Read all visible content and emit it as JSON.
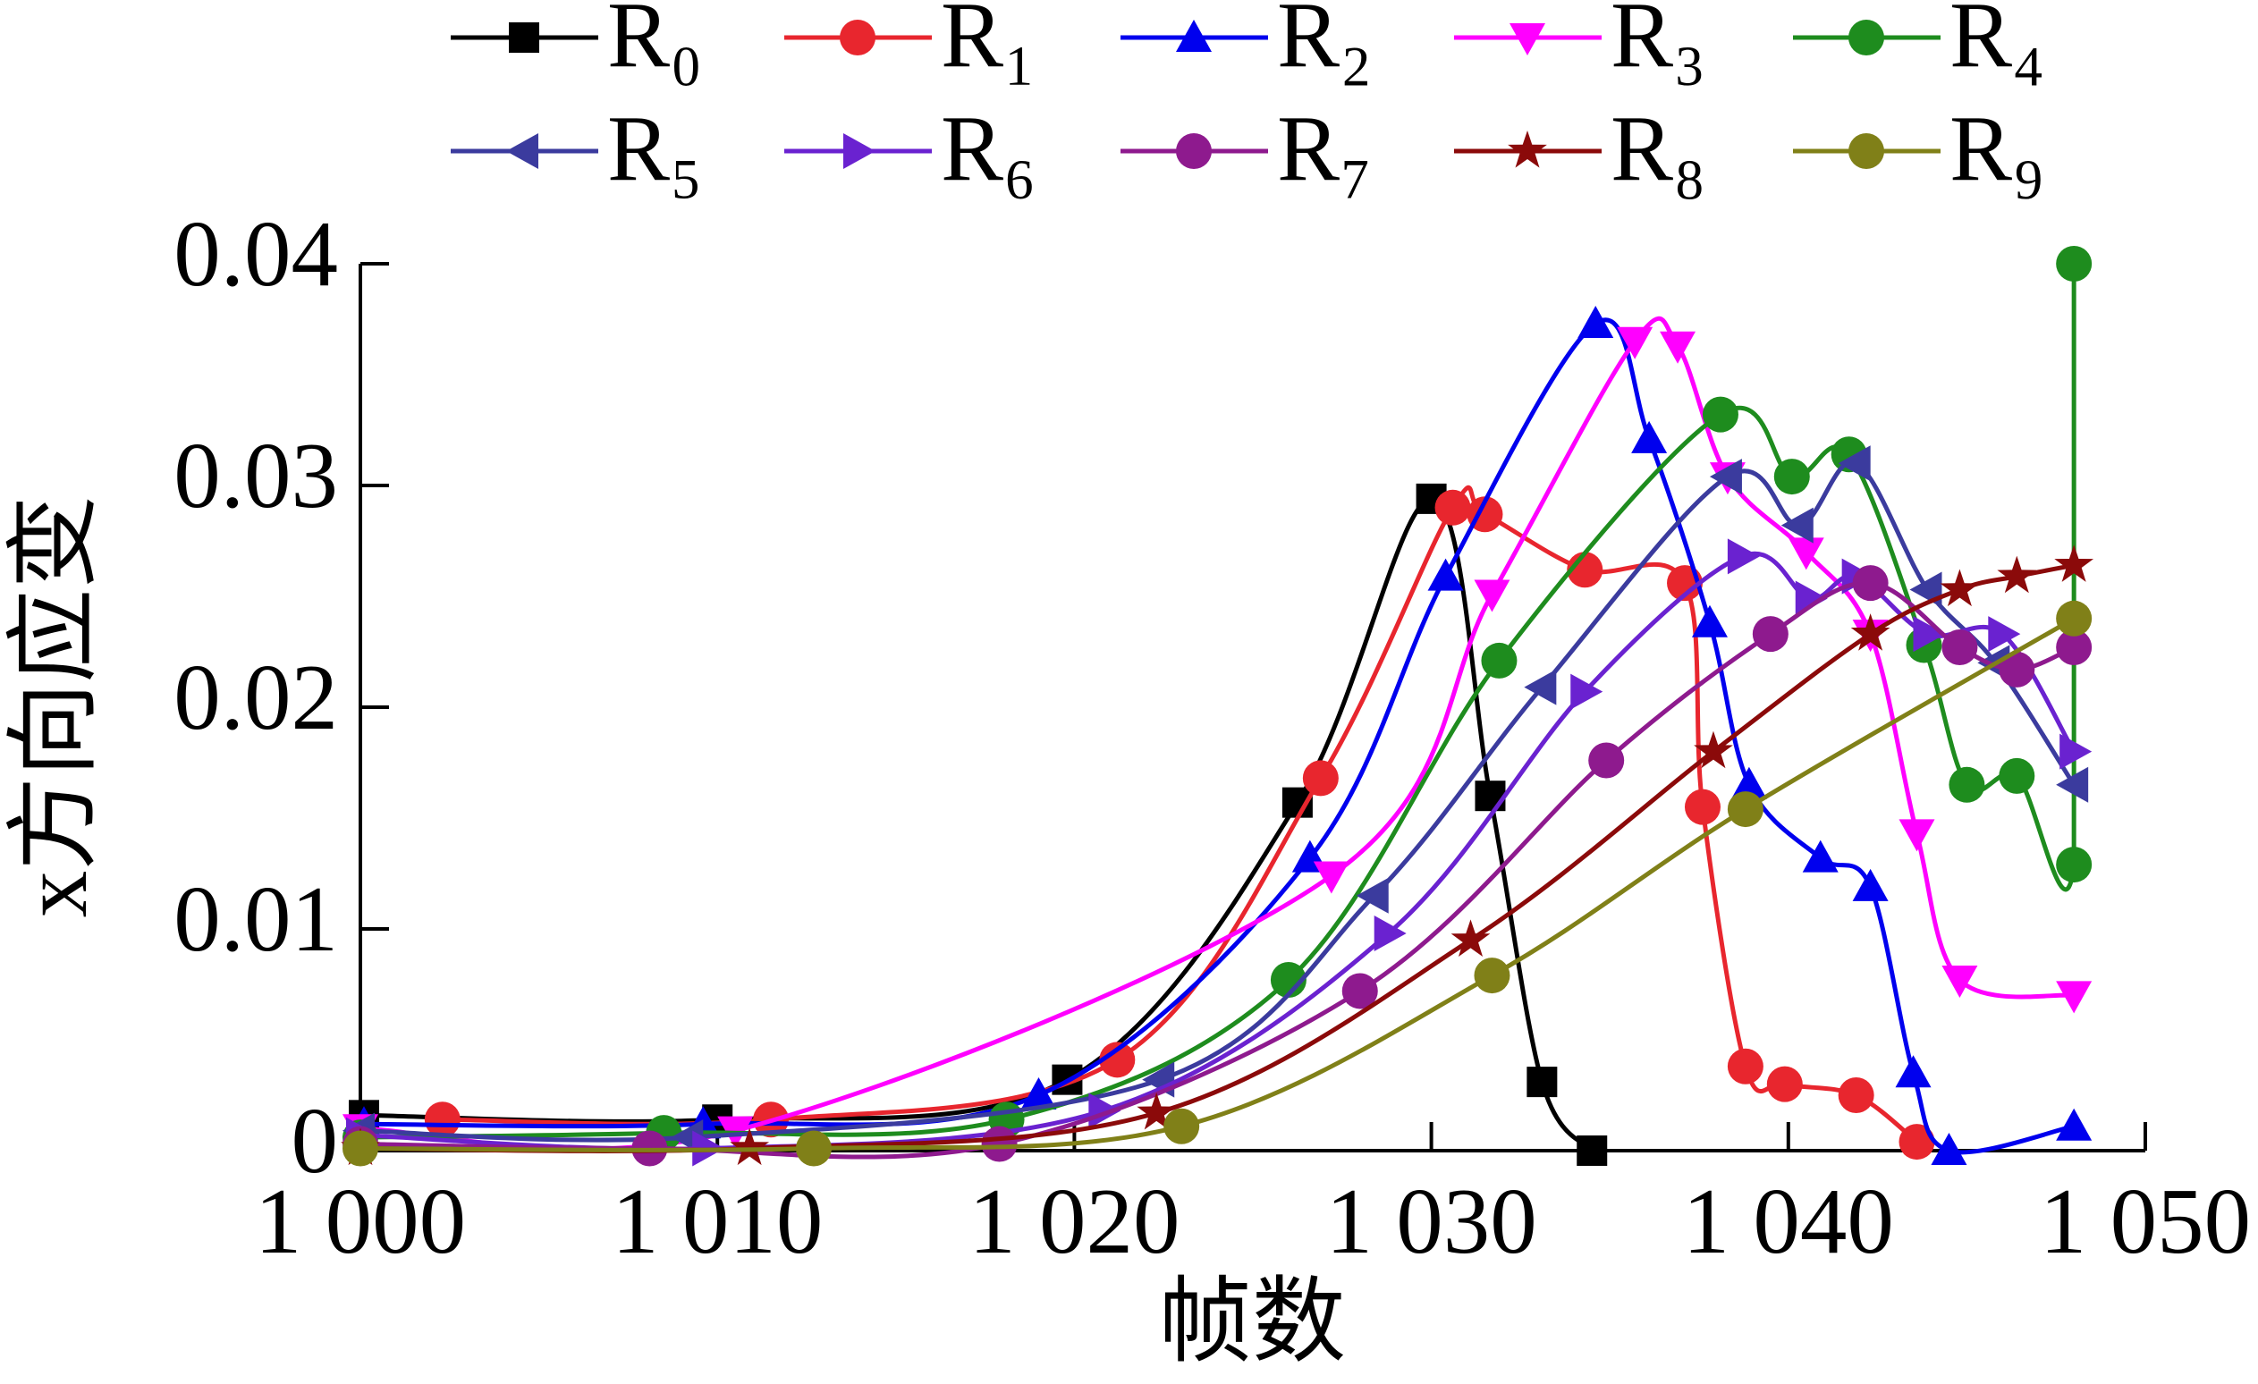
{
  "chart_data": {
    "type": "line",
    "x_label": "帧数",
    "y_label": "x方向应变",
    "xlim": [
      1000,
      1050
    ],
    "xticks": [
      {
        "value": 1000,
        "label": "1 000"
      },
      {
        "value": 1010,
        "label": "1 010"
      },
      {
        "value": 1020,
        "label": "1 020"
      },
      {
        "value": 1030,
        "label": "1 030"
      },
      {
        "value": 1040,
        "label": "1 040"
      },
      {
        "value": 1050,
        "label": "1 050"
      }
    ],
    "ylim": [
      0,
      0.04
    ],
    "yticks": [
      0,
      0.01,
      0.02,
      0.03,
      0.04
    ],
    "series": [
      {
        "name": "R₀",
        "color": "#000000",
        "marker": "square",
        "x": [
          1000.1,
          1010,
          1019.8,
          1026.25,
          1030.0,
          1031.65,
          1033.1,
          1034.5
        ],
        "values": [
          0.0016,
          0.0014,
          0.0032,
          0.0157,
          0.0294,
          0.016,
          0.0031,
          0
        ]
      },
      {
        "name": "R₁",
        "color": "#e8262e",
        "marker": "circle",
        "x": [
          1002.3,
          1011.5,
          1021.2,
          1026.9,
          1030.6,
          1031.5,
          1034.3,
          1037.1,
          1037.6,
          1038.8,
          1039.9,
          1041.9,
          1043.6
        ],
        "values": [
          0.0014,
          0.0014,
          0.0041,
          0.0168,
          0.029,
          0.0287,
          0.0262,
          0.0256,
          0.0155,
          0.0038,
          0.003,
          0.0025,
          0.0004
        ]
      },
      {
        "name": "R₂",
        "color": "#0000ee",
        "marker": "triangle-up",
        "x": [
          1000.1,
          1009.6,
          1019.0,
          1026.6,
          1030.4,
          1034.6,
          1036.1,
          1037.8,
          1038.9,
          1040.9,
          1042.3,
          1043.5,
          1044.5,
          1048.0
        ],
        "values": [
          0.0012,
          0.0012,
          0.0025,
          0.0132,
          0.0259,
          0.0373,
          0.0321,
          0.0238,
          0.0165,
          0.0132,
          0.0119,
          0.0035,
          0,
          0.0011
        ]
      },
      {
        "name": "R₃",
        "color": "#ff00ff",
        "marker": "triangle-down",
        "x": [
          1000,
          1010.5,
          1027.2,
          1031.7,
          1035.7,
          1036.9,
          1038.3,
          1040.5,
          1042.3,
          1043.6,
          1044.8,
          1048.0
        ],
        "values": [
          0.001,
          0.0009,
          0.0124,
          0.0251,
          0.0365,
          0.0363,
          0.0304,
          0.027,
          0.0233,
          0.0143,
          0.0077,
          0.007
        ]
      },
      {
        "name": "R₄",
        "color": "#1e8c1e",
        "marker": "circle",
        "x": [
          1000,
          1008.5,
          1018.1,
          1026.0,
          1031.9,
          1038.1,
          1040.1,
          1041.7,
          1043.8,
          1045.0,
          1046.4,
          1048.0,
          1048.0
        ],
        "values": [
          0.0006,
          0.0008,
          0.0014,
          0.0077,
          0.0221,
          0.0332,
          0.0304,
          0.0314,
          0.0228,
          0.0165,
          0.0169,
          0.0129,
          0.04
        ]
      },
      {
        "name": "R₅",
        "color": "#3b3b9e",
        "marker": "triangle-left",
        "x": [
          1000,
          1009.2,
          1022.4,
          1028.4,
          1033.1,
          1038.3,
          1040.3,
          1041.9,
          1043.9,
          1045.8,
          1048.0
        ],
        "values": [
          0.0009,
          0.0006,
          0.0032,
          0.0115,
          0.0209,
          0.0304,
          0.0282,
          0.031,
          0.0253,
          0.022,
          0.0165
        ]
      },
      {
        "name": "R₆",
        "color": "#6a22d0",
        "marker": "triangle-right",
        "x": [
          1000,
          1009.7,
          1020.8,
          1028.8,
          1034.3,
          1038.7,
          1040.6,
          1041.9,
          1043.9,
          1046.0,
          1048.0
        ],
        "values": [
          0.0007,
          0.0001,
          0.0018,
          0.0098,
          0.0207,
          0.0268,
          0.0249,
          0.0259,
          0.0233,
          0.0233,
          0.018
        ]
      },
      {
        "name": "R₇",
        "color": "#8e1a8e",
        "marker": "circle",
        "x": [
          1000,
          1008.1,
          1017.9,
          1028.0,
          1034.9,
          1039.5,
          1042.3,
          1044.8,
          1046.4,
          1048.0
        ],
        "values": [
          0.0003,
          0.0001,
          0.0003,
          0.0072,
          0.0176,
          0.0233,
          0.0256,
          0.0227,
          0.0217,
          0.0227
        ]
      },
      {
        "name": "R₈",
        "color": "#8b0a0a",
        "marker": "star",
        "x": [
          1000,
          1010.9,
          1022.3,
          1031.1,
          1037.9,
          1042.3,
          1044.8,
          1046.4,
          1048.0
        ],
        "values": [
          0.0001,
          0.0001,
          0.0017,
          0.0095,
          0.018,
          0.0233,
          0.0253,
          0.0259,
          0.0264
        ]
      },
      {
        "name": "R₉",
        "color": "#808018",
        "marker": "circle",
        "x": [
          1000,
          1012.7,
          1023.0,
          1031.7,
          1038.8,
          1048.0
        ],
        "values": [
          0.0001,
          0.0001,
          0.0011,
          0.0079,
          0.0154,
          0.024
        ]
      }
    ]
  }
}
